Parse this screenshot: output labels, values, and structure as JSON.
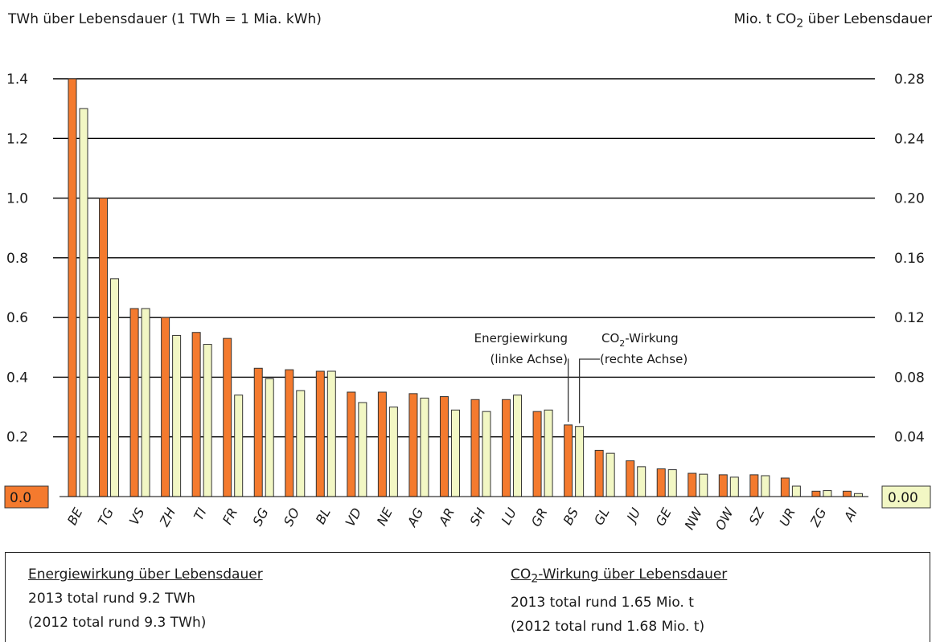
{
  "left_axis_title": "TWh über Lebensdauer (1 TWh = 1 Mia. kWh)",
  "right_axis_title": {
    "prefix": "Mio. t CO",
    "sub": "2",
    "suffix": " über Lebensdauer"
  },
  "colors": {
    "energy": "#f47a2e",
    "co2": "#f2f7c4",
    "stroke": "#333333",
    "grid": "#000000"
  },
  "chart_data": {
    "type": "bar",
    "categories": [
      "BE",
      "TG",
      "VS",
      "ZH",
      "TI",
      "FR",
      "SG",
      "SO",
      "BL",
      "VD",
      "NE",
      "AG",
      "AR",
      "SH",
      "LU",
      "GR",
      "BS",
      "GL",
      "JU",
      "GE",
      "NW",
      "OW",
      "SZ",
      "UR",
      "ZG",
      "AI"
    ],
    "series": [
      {
        "name": "Energiewirkung (linke Achse)",
        "axis": "left",
        "values": [
          1.4,
          1.0,
          0.63,
          0.6,
          0.55,
          0.53,
          0.43,
          0.425,
          0.42,
          0.35,
          0.35,
          0.345,
          0.335,
          0.325,
          0.325,
          0.285,
          0.24,
          0.155,
          0.12,
          0.093,
          0.078,
          0.073,
          0.073,
          0.062,
          0.018,
          0.018
        ]
      },
      {
        "name": "CO2-Wirkung (rechte Achse)",
        "axis": "right",
        "values": [
          0.26,
          0.146,
          0.126,
          0.108,
          0.102,
          0.068,
          0.079,
          0.071,
          0.084,
          0.063,
          0.06,
          0.066,
          0.058,
          0.057,
          0.068,
          0.058,
          0.047,
          0.029,
          0.02,
          0.018,
          0.015,
          0.013,
          0.014,
          0.007,
          0.004,
          0.002
        ]
      }
    ],
    "y_left": {
      "ylim": [
        0,
        1.4
      ],
      "ticks": [
        "0.0",
        "0.2",
        "0.4",
        "0.6",
        "0.8",
        "1.0",
        "1.2",
        "1.4"
      ]
    },
    "y_right": {
      "ylim": [
        0,
        0.28
      ],
      "ticks": [
        "0.00",
        "0.04",
        "0.08",
        "0.12",
        "0.16",
        "0.20",
        "0.24",
        "0.28"
      ]
    },
    "grid": true,
    "annotations": {
      "energy": [
        "Energiewirkung",
        "(linke Achse)"
      ],
      "co2": {
        "line1_prefix": "CO",
        "line1_sub": "2",
        "line1_suffix": "-Wirkung",
        "line2": "(rechte Achse)"
      }
    }
  },
  "legend": {
    "energy": {
      "heading": "Energiewirkung über Lebensdauer",
      "line1": "2013 total rund 9.2 TWh",
      "line2": "(2012 total rund 9.3 TWh)"
    },
    "co2": {
      "heading_prefix": "CO",
      "heading_sub": "2",
      "heading_suffix": "-Wirkung über Lebensdauer",
      "line1": "2013 total rund 1.65 Mio. t",
      "line2": "(2012 total rund 1.68 Mio. t)"
    }
  }
}
